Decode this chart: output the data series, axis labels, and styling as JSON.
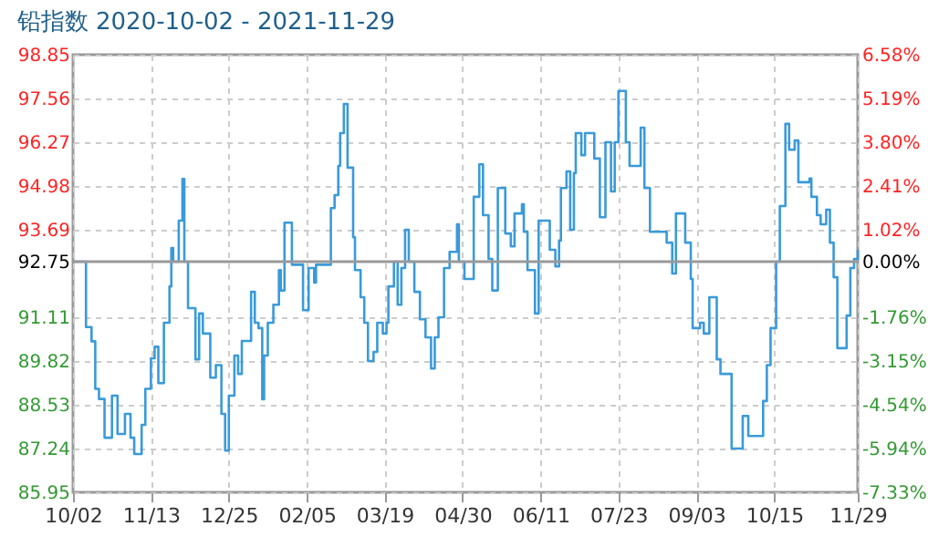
{
  "chart_data": {
    "type": "step",
    "title": "铅指数 2020-10-02 - 2021-11-29",
    "x": [
      "2020-10-02",
      "2020-10-09",
      "2020-10-12",
      "2020-10-14",
      "2020-10-16",
      "2020-10-19",
      "2020-10-23",
      "2020-10-26",
      "2020-10-30",
      "2020-11-02",
      "2020-11-04",
      "2020-11-08",
      "2020-11-10",
      "2020-11-13",
      "2020-11-15",
      "2020-11-17",
      "2020-11-20",
      "2020-11-23",
      "2020-11-24",
      "2020-11-25",
      "2020-11-28",
      "2020-11-30",
      "2020-12-01",
      "2020-12-03",
      "2020-12-07",
      "2020-12-09",
      "2020-12-11",
      "2020-12-15",
      "2020-12-18",
      "2020-12-21",
      "2020-12-23",
      "2020-12-25",
      "2020-12-28",
      "2020-12-30",
      "2021-01-01",
      "2021-01-06",
      "2021-01-08",
      "2021-01-10",
      "2021-01-12",
      "2021-01-13",
      "2021-01-15",
      "2021-01-18",
      "2021-01-21",
      "2021-01-22",
      "2021-01-24",
      "2021-01-28",
      "2021-02-03",
      "2021-02-06",
      "2021-02-09",
      "2021-02-10",
      "2021-02-18",
      "2021-02-20",
      "2021-02-22",
      "2021-02-23",
      "2021-02-25",
      "2021-02-27",
      "2021-03-02",
      "2021-03-03",
      "2021-03-06",
      "2021-03-08",
      "2021-03-10",
      "2021-03-13",
      "2021-03-15",
      "2021-03-18",
      "2021-03-20",
      "2021-03-21",
      "2021-03-24",
      "2021-03-26",
      "2021-03-28",
      "2021-03-30",
      "2021-04-01",
      "2021-04-04",
      "2021-04-07",
      "2021-04-10",
      "2021-04-13",
      "2021-04-15",
      "2021-04-17",
      "2021-04-20",
      "2021-04-23",
      "2021-04-27",
      "2021-04-28",
      "2021-05-01",
      "2021-05-06",
      "2021-05-09",
      "2021-05-11",
      "2021-05-14",
      "2021-05-16",
      "2021-05-19",
      "2021-05-23",
      "2021-05-26",
      "2021-05-28",
      "2021-06-01",
      "2021-06-02",
      "2021-06-04",
      "2021-06-08",
      "2021-06-10",
      "2021-06-16",
      "2021-06-19",
      "2021-06-21",
      "2021-06-22",
      "2021-06-25",
      "2021-06-27",
      "2021-06-29",
      "2021-06-30",
      "2021-07-03",
      "2021-07-05",
      "2021-07-10",
      "2021-07-13",
      "2021-07-16",
      "2021-07-19",
      "2021-07-21",
      "2021-07-23",
      "2021-07-27",
      "2021-07-29",
      "2021-08-04",
      "2021-08-06",
      "2021-08-09",
      "2021-08-18",
      "2021-08-21",
      "2021-08-23",
      "2021-08-28",
      "2021-08-31",
      "2021-09-01",
      "2021-09-05",
      "2021-09-07",
      "2021-09-10",
      "2021-09-14",
      "2021-09-16",
      "2021-09-22",
      "2021-09-28",
      "2021-10-01",
      "2021-10-09",
      "2021-10-11",
      "2021-10-13",
      "2021-10-16",
      "2021-10-18",
      "2021-10-21",
      "2021-10-23",
      "2021-10-26",
      "2021-10-28",
      "2021-11-03",
      "2021-11-04",
      "2021-11-07",
      "2021-11-09",
      "2021-11-12",
      "2021-11-14",
      "2021-11-16",
      "2021-11-18",
      "2021-11-23",
      "2021-11-25",
      "2021-11-27",
      "2021-11-29"
    ],
    "series": [
      {
        "color": "#3a9ad9",
        "values": [
          92.75,
          90.82,
          90.4,
          89.0,
          88.7,
          87.56,
          88.8,
          87.67,
          88.26,
          87.56,
          87.08,
          87.94,
          89.0,
          89.9,
          90.24,
          89.17,
          90.95,
          92.02,
          93.15,
          92.75,
          93.96,
          95.19,
          92.75,
          91.38,
          89.87,
          91.22,
          90.63,
          89.33,
          89.7,
          88.26,
          87.18,
          88.8,
          89.98,
          89.44,
          90.41,
          91.86,
          90.95,
          90.79,
          88.69,
          89.98,
          90.95,
          91.48,
          92.5,
          91.9,
          93.9,
          92.66,
          91.32,
          92.56,
          92.13,
          92.66,
          94.33,
          94.71,
          95.57,
          96.54,
          97.4,
          95.52,
          93.47,
          92.5,
          91.7,
          90.95,
          89.82,
          90.09,
          90.95,
          90.63,
          90.95,
          92.02,
          92.75,
          91.48,
          92.56,
          93.69,
          92.75,
          91.86,
          91.05,
          90.52,
          89.6,
          90.52,
          91.11,
          92.56,
          93.04,
          93.85,
          92.75,
          92.24,
          94.66,
          95.62,
          94.12,
          92.83,
          91.9,
          94.92,
          93.58,
          93.2,
          94.17,
          94.44,
          93.63,
          92.5,
          91.22,
          93.96,
          93.1,
          92.61,
          93.37,
          94.92,
          95.41,
          93.69,
          95.36,
          96.54,
          95.89,
          96.54,
          95.79,
          94.06,
          96.27,
          94.82,
          96.27,
          97.78,
          96.27,
          95.57,
          96.7,
          94.92,
          93.63,
          93.31,
          92.4,
          94.17,
          93.31,
          92.24,
          90.79,
          90.95,
          90.63,
          91.7,
          89.87,
          89.44,
          87.24,
          88.2,
          87.61,
          88.64,
          89.7,
          90.79,
          92.75,
          94.39,
          96.81,
          96.05,
          96.32,
          95.09,
          95.2,
          94.66,
          94.12,
          93.85,
          94.28,
          93.31,
          92.29,
          90.2,
          91.16,
          92.56,
          92.83,
          93.1
        ]
      }
    ],
    "xlim": [
      "2020-10-02",
      "2021-11-29"
    ],
    "xticks": [
      {
        "value": "2020-10-02",
        "label": "10/02"
      },
      {
        "value": "2020-11-13",
        "label": "11/13"
      },
      {
        "value": "2020-12-25",
        "label": "12/25"
      },
      {
        "value": "2021-02-05",
        "label": "02/05"
      },
      {
        "value": "2021-03-19",
        "label": "03/19"
      },
      {
        "value": "2021-04-30",
        "label": "04/30"
      },
      {
        "value": "2021-06-11",
        "label": "06/11"
      },
      {
        "value": "2021-07-23",
        "label": "07/23"
      },
      {
        "value": "2021-09-03",
        "label": "09/03"
      },
      {
        "value": "2021-10-15",
        "label": "10/15"
      },
      {
        "value": "2021-11-29",
        "label": "11/29"
      }
    ],
    "ylim": [
      85.95,
      98.85
    ],
    "yticks": [
      85.95,
      87.24,
      88.53,
      89.82,
      91.11,
      92.75,
      93.69,
      94.98,
      96.27,
      97.56,
      98.85
    ],
    "y2lim": [
      -7.33,
      6.58
    ],
    "y2ticks": [
      {
        "value": -7.33,
        "label": "-7.33%"
      },
      {
        "value": -5.94,
        "label": "-5.94%"
      },
      {
        "value": -4.54,
        "label": "-4.54%"
      },
      {
        "value": -3.15,
        "label": "-3.15%"
      },
      {
        "value": -1.76,
        "label": "-1.76%"
      },
      {
        "value": 0,
        "label": "0.00%"
      },
      {
        "value": 1.02,
        "label": "1.02%"
      },
      {
        "value": 2.41,
        "label": "2.41%"
      },
      {
        "value": 3.8,
        "label": "3.80%"
      },
      {
        "value": 5.19,
        "label": "5.19%"
      },
      {
        "value": 6.58,
        "label": "6.58%"
      }
    ],
    "ref_lines": [
      {
        "axis": "y",
        "value": 92.75,
        "color": "#999999"
      }
    ],
    "grid": true,
    "line_style": "solid"
  }
}
